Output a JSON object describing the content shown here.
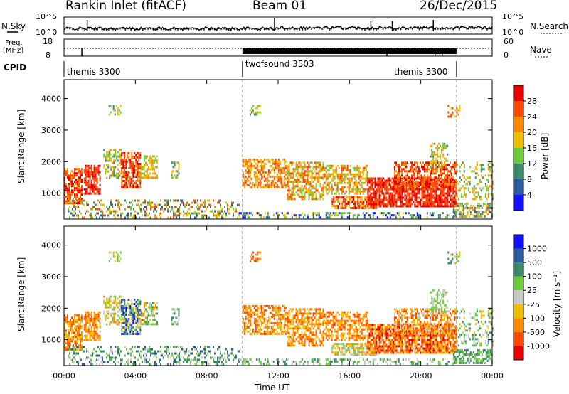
{
  "header": {
    "station": "Rankin Inlet (fitACF)",
    "beam": "Beam 01",
    "date": "26/Dec/2015"
  },
  "side_labels": {
    "nsky": "N.Sky",
    "nsky_ticks": [
      "10^5",
      "10^0"
    ],
    "freq": "Freq.",
    "freq_unit": "[MHz]",
    "freq_ticks": [
      "18",
      "8"
    ],
    "cpid": "CPID",
    "nsearch": "N.Search",
    "nsearch_ticks": [
      "10^5",
      "10^0"
    ],
    "nave": "Nave",
    "nave_ticks": [
      "60",
      "0"
    ]
  },
  "cpid_segments": [
    {
      "label": "themis 3300",
      "start_hour": 0,
      "end_hour": 10
    },
    {
      "label": "twofsound 3503",
      "start_hour": 10,
      "end_hour": 22
    },
    {
      "label": "themis 3300",
      "start_hour": 18,
      "end_hour": 22
    }
  ],
  "chart_data": [
    {
      "type": "heatmap",
      "name": "power",
      "ylabel": "Slant Range [km]",
      "xlabel": "",
      "ylim": [
        180,
        4600
      ],
      "xlim_hours": [
        0,
        24
      ],
      "yticks": [
        1000,
        2000,
        3000,
        4000
      ],
      "colorbar": {
        "label": "Power [dB]",
        "ticks": [
          "28",
          "24",
          "20",
          "16",
          "12",
          "8",
          "4"
        ],
        "colors": [
          "#e80000",
          "#ff4a00",
          "#ff8a00",
          "#f0c000",
          "#6acc3a",
          "#3a8a6a",
          "#2a5aa0",
          "#1010ff"
        ]
      }
    },
    {
      "type": "heatmap",
      "name": "velocity",
      "ylabel": "Slant Range [km]",
      "xlabel": "Time UT",
      "ylim": [
        180,
        4600
      ],
      "xlim_hours": [
        0,
        24
      ],
      "yticks": [
        1000,
        2000,
        3000,
        4000
      ],
      "xticks": [
        "00:00",
        "04:00",
        "08:00",
        "12:00",
        "16:00",
        "20:00",
        "00:00"
      ],
      "colorbar": {
        "label": "Velocity [m s⁻¹]",
        "ticks": [
          "1000",
          "500",
          "100",
          "25",
          "-25",
          "-100",
          "-500",
          "-1000"
        ],
        "colors": [
          "#1010ff",
          "#2a5aa0",
          "#3a8a6a",
          "#6acc3a",
          "#c8c8c8",
          "#f0c000",
          "#ff8a00",
          "#ff4a00",
          "#e80000"
        ]
      }
    }
  ]
}
